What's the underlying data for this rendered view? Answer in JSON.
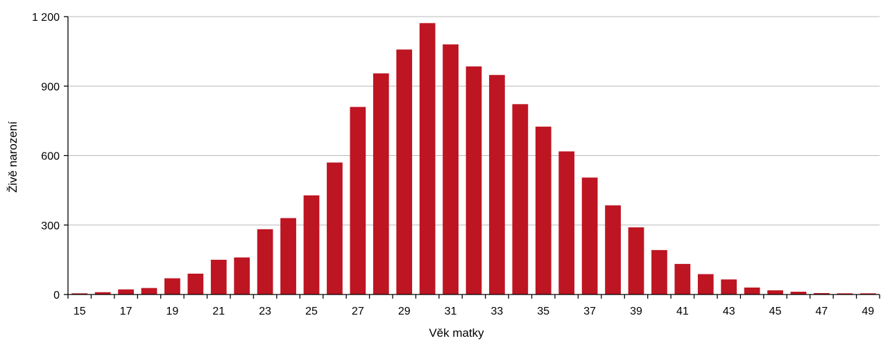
{
  "chart_data": {
    "type": "bar",
    "xlabel": "Věk matky",
    "ylabel": "Živě narození",
    "ylim": [
      0,
      1200
    ],
    "y_ticks": [
      0,
      300,
      600,
      900,
      1200
    ],
    "y_tick_labels": [
      "0",
      "300",
      "600",
      "900",
      "1 200"
    ],
    "x_tick_labels": [
      "15",
      "17",
      "19",
      "21",
      "23",
      "25",
      "27",
      "29",
      "31",
      "33",
      "35",
      "37",
      "39",
      "41",
      "43",
      "45",
      "47",
      "49"
    ],
    "grid": true,
    "bar_color": "#BE1522",
    "categories": [
      "15",
      "16",
      "17",
      "18",
      "19",
      "20",
      "21",
      "22",
      "23",
      "24",
      "25",
      "26",
      "27",
      "28",
      "29",
      "30",
      "31",
      "32",
      "33",
      "34",
      "35",
      "36",
      "37",
      "38",
      "39",
      "40",
      "41",
      "42",
      "43",
      "44",
      "45",
      "46",
      "47",
      "48",
      "49"
    ],
    "values": [
      5,
      10,
      22,
      28,
      70,
      90,
      150,
      160,
      282,
      330,
      428,
      570,
      810,
      955,
      1058,
      1172,
      1080,
      985,
      948,
      822,
      725,
      618,
      505,
      385,
      290,
      192,
      132,
      88,
      65,
      30,
      18,
      12,
      6,
      5,
      5
    ]
  }
}
